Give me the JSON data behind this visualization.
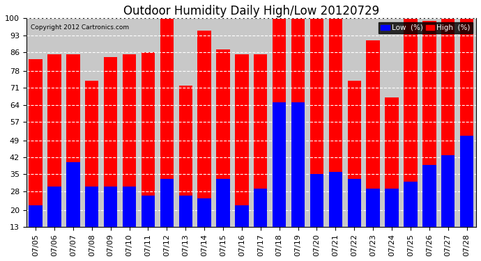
{
  "title": "Outdoor Humidity Daily High/Low 20120729",
  "copyright": "Copyright 2012 Cartronics.com",
  "legend_low": "Low  (%)",
  "legend_high": "High  (%)",
  "dates": [
    "07/05",
    "07/06",
    "07/07",
    "07/08",
    "07/09",
    "07/10",
    "07/11",
    "07/12",
    "07/13",
    "07/14",
    "07/15",
    "07/16",
    "07/17",
    "07/18",
    "07/19",
    "07/20",
    "07/21",
    "07/22",
    "07/23",
    "07/24",
    "07/25",
    "07/26",
    "07/27",
    "07/28"
  ],
  "high": [
    83,
    85,
    85,
    74,
    84,
    85,
    86,
    100,
    72,
    95,
    87,
    85,
    85,
    100,
    100,
    100,
    100,
    74,
    91,
    67,
    100,
    99,
    100,
    100
  ],
  "low": [
    22,
    30,
    40,
    30,
    30,
    30,
    26,
    33,
    26,
    25,
    33,
    22,
    29,
    65,
    65,
    35,
    36,
    33,
    29,
    29,
    32,
    39,
    43,
    51
  ],
  "bar_color_high": "#ff0000",
  "bar_color_low": "#0000ff",
  "bg_color": "#ffffff",
  "plot_bg_color": "#c8c8c8",
  "grid_color": "#ffffff",
  "title_fontsize": 12,
  "tick_fontsize": 8,
  "ylim_min": 13,
  "ylim_max": 100,
  "yticks": [
    13,
    20,
    28,
    35,
    42,
    49,
    57,
    64,
    71,
    78,
    86,
    93,
    100
  ]
}
